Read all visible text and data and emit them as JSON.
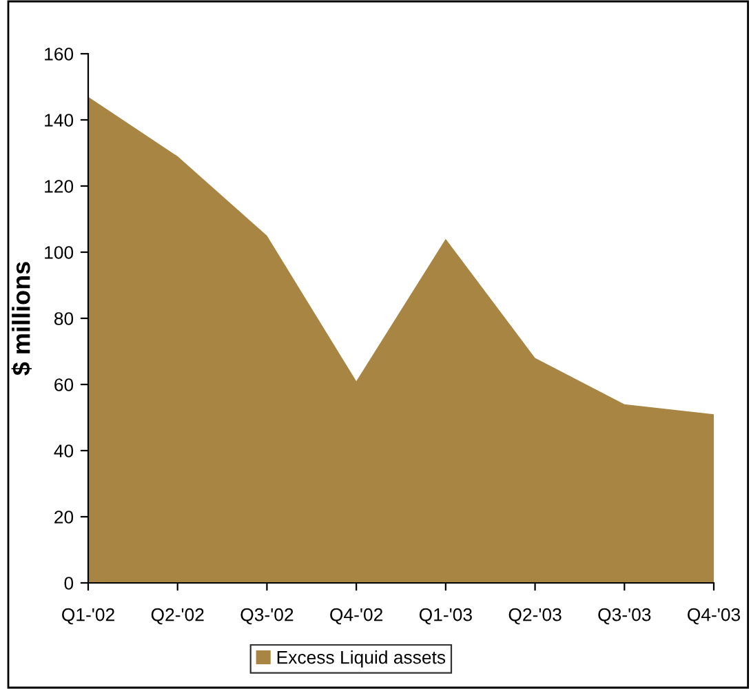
{
  "chart_data": {
    "type": "area",
    "ylabel": "$ millions",
    "categories": [
      "Q1-'02",
      "Q2-'02",
      "Q3-'02",
      "Q4-'02",
      "Q1-'03",
      "Q2-'03",
      "Q3-'03",
      "Q4-'03"
    ],
    "series": [
      {
        "name": "Excess Liquid assets",
        "color": "#a88542",
        "values": [
          147,
          129,
          105,
          61,
          104,
          68,
          54,
          51
        ]
      }
    ],
    "ylim": [
      0,
      160
    ],
    "yticks": [
      0,
      20,
      40,
      60,
      80,
      100,
      120,
      140,
      160
    ],
    "grid": false,
    "legend": "bottom"
  }
}
